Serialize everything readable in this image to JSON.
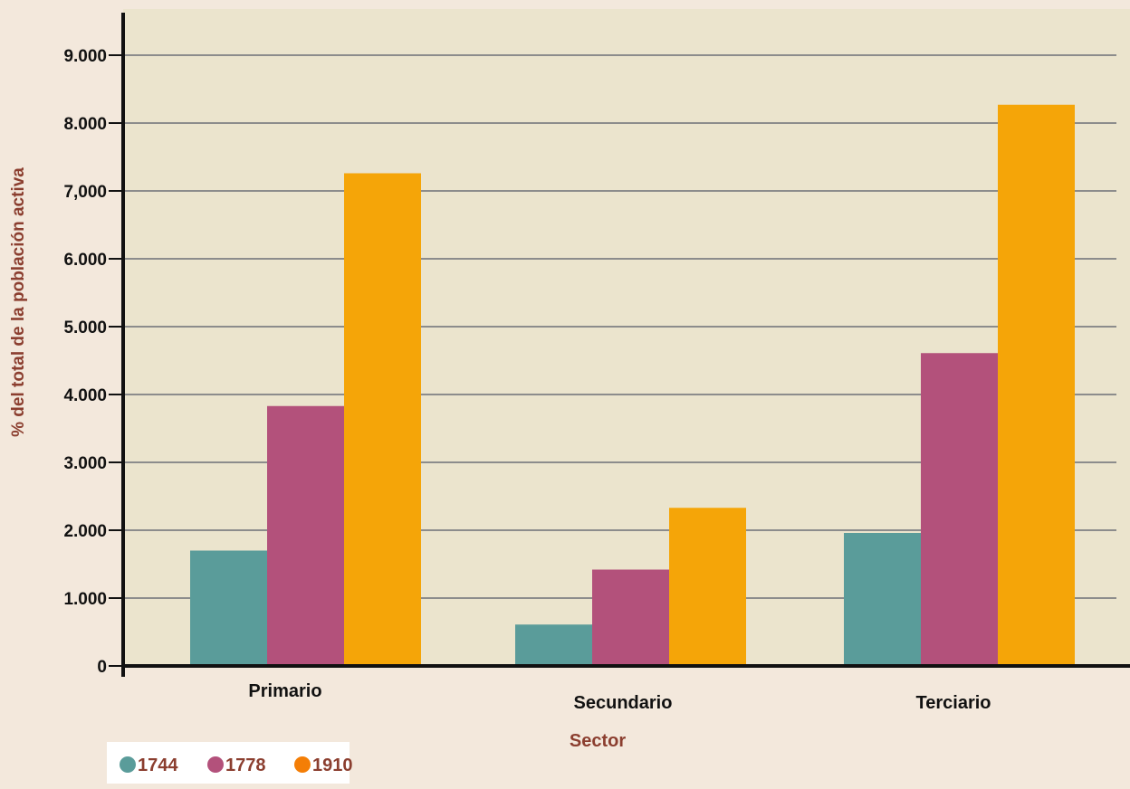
{
  "chart_data": {
    "type": "bar",
    "title": "",
    "xlabel": "Sector",
    "ylabel": "% del total  de la población activa",
    "categories": [
      "Primario",
      "Secundario",
      "Terciario"
    ],
    "y_ticks": [
      0,
      1000,
      2000,
      3000,
      4000,
      5000,
      6000,
      7000,
      8000,
      9000
    ],
    "y_tick_labels": [
      "0",
      "1.000",
      "2.000",
      "3.000",
      "4.000",
      "5.000",
      "6.000",
      "7,000",
      "8.000",
      "9.000"
    ],
    "ylim": [
      0,
      9000
    ],
    "grid": true,
    "legend_position": "bottom-left",
    "series": [
      {
        "name": "1744",
        "color": "#5a9c9a",
        "values": [
          1700,
          610,
          1960
        ]
      },
      {
        "name": "1778",
        "color": "#b3517b",
        "values": [
          3830,
          1420,
          4610
        ]
      },
      {
        "name": "1910",
        "color": "#f5a508",
        "values": [
          7260,
          2330,
          8270
        ]
      }
    ],
    "colors": {
      "plot_background": "#ebe4cd",
      "page_background": "#f3e8dc",
      "grid": "#8c8c8c",
      "axis": "#111111",
      "label_accent": "#8b3e2f",
      "legend_background": "#ffffff",
      "legend_marker_1910": "#f47e06"
    }
  }
}
